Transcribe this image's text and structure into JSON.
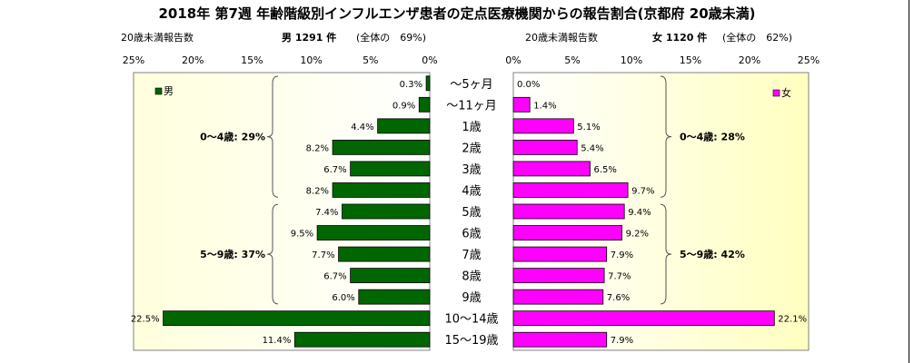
{
  "title": "2018年 第7週 年齢階級別インフルエンザ患者の定点医療機関からの報告割合(京都府 20歳未満)",
  "male_header": {
    "caption": "20歳未満報告数",
    "count": "男 1291 件",
    "share": "(全体の　69%)"
  },
  "female_header": {
    "caption": "20歳未満報告数",
    "count": "女 1120 件",
    "share": "(全体の　62%)"
  },
  "colors": {
    "male": "#006600",
    "female": "#ff00ff",
    "plot_bg": "#ffffcc"
  },
  "chart_data": [
    {
      "type": "bar",
      "orientation": "horizontal",
      "direction": "leftward",
      "legend": "男",
      "legend_position": "top-left",
      "categories": [
        "〜5ヶ月",
        "〜11ヶ月",
        "1歳",
        "2歳",
        "3歳",
        "4歳",
        "5歳",
        "6歳",
        "7歳",
        "8歳",
        "9歳",
        "10〜14歳",
        "15〜19歳"
      ],
      "values": [
        0.3,
        0.9,
        4.4,
        8.2,
        6.7,
        8.2,
        7.4,
        9.5,
        7.7,
        6.7,
        6.0,
        22.5,
        11.4
      ],
      "value_labels": [
        "0.3%",
        "0.9%",
        "4.4%",
        "8.2%",
        "6.7%",
        "8.2%",
        "7.4%",
        "9.5%",
        "7.7%",
        "6.7%",
        "6.0%",
        "22.5%",
        "11.4%"
      ],
      "xlim": [
        0,
        25
      ],
      "ticks": [
        25,
        20,
        15,
        10,
        5,
        0
      ],
      "tick_labels": [
        "25%",
        "20%",
        "15%",
        "10%",
        "5%",
        "0%"
      ],
      "groups": [
        {
          "label": "0〜4歳: 29%",
          "from": 0,
          "to": 5
        },
        {
          "label": "5〜9歳: 37%",
          "from": 6,
          "to": 10
        }
      ]
    },
    {
      "type": "bar",
      "orientation": "horizontal",
      "direction": "rightward",
      "legend": "女",
      "legend_position": "top-right",
      "categories": [
        "〜5ヶ月",
        "〜11ヶ月",
        "1歳",
        "2歳",
        "3歳",
        "4歳",
        "5歳",
        "6歳",
        "7歳",
        "8歳",
        "9歳",
        "10〜14歳",
        "15〜19歳"
      ],
      "values": [
        0.0,
        1.4,
        5.1,
        5.4,
        6.5,
        9.7,
        9.4,
        9.2,
        7.9,
        7.7,
        7.6,
        22.1,
        7.9
      ],
      "value_labels": [
        "0.0%",
        "1.4%",
        "5.1%",
        "5.4%",
        "6.5%",
        "9.7%",
        "9.4%",
        "9.2%",
        "7.9%",
        "7.7%",
        "7.6%",
        "22.1%",
        "7.9%"
      ],
      "xlim": [
        0,
        25
      ],
      "ticks": [
        0,
        5,
        10,
        15,
        20,
        25
      ],
      "tick_labels": [
        "0%",
        "5%",
        "10%",
        "15%",
        "20%",
        "25%"
      ],
      "groups": [
        {
          "label": "0〜4歳: 28%",
          "from": 0,
          "to": 5
        },
        {
          "label": "5〜9歳: 42%",
          "from": 6,
          "to": 10
        }
      ]
    }
  ]
}
